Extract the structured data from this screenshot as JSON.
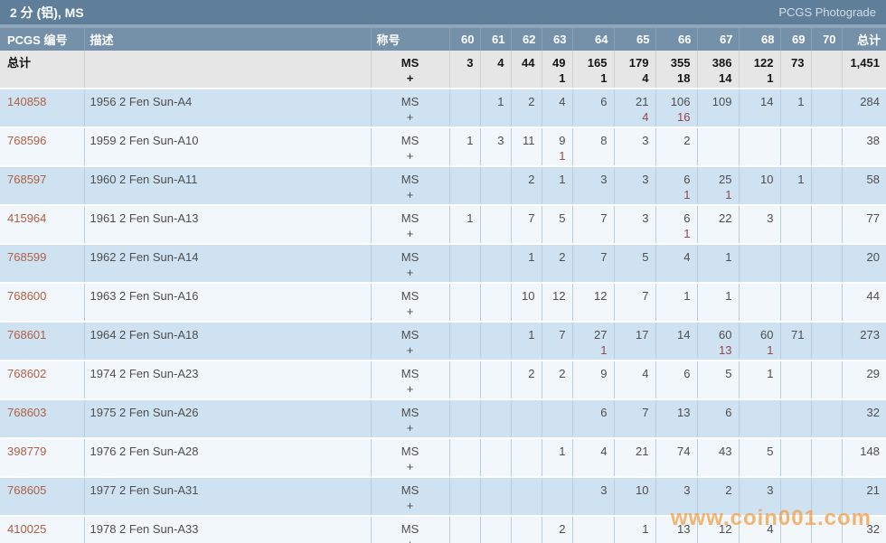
{
  "title": "2 分 (铝), MS",
  "brand": "PCGS Photograde",
  "columns": {
    "pcgs": "PCGS 编号",
    "desc": "描述",
    "designation": "称号",
    "grades": [
      "60",
      "61",
      "62",
      "63",
      "64",
      "65",
      "66",
      "67",
      "68",
      "69",
      "70"
    ],
    "total": "总计"
  },
  "designation_lines": [
    "MS",
    "+"
  ],
  "totals_row": {
    "label": "总计",
    "grades": [
      [
        "3",
        ""
      ],
      [
        "4",
        ""
      ],
      [
        "44",
        ""
      ],
      [
        "49",
        "1"
      ],
      [
        "165",
        "1"
      ],
      [
        "179",
        "4"
      ],
      [
        "355",
        "18"
      ],
      [
        "386",
        "14"
      ],
      [
        "122",
        "1"
      ],
      [
        "73",
        ""
      ],
      [
        "",
        ""
      ]
    ],
    "total": "1,451"
  },
  "rows": [
    {
      "pcgs": "140858",
      "desc": "1956 2 Fen Sun-A4",
      "grades": [
        [
          "",
          ""
        ],
        [
          "1",
          ""
        ],
        [
          "2",
          ""
        ],
        [
          "4",
          ""
        ],
        [
          "6",
          ""
        ],
        [
          "21",
          "4"
        ],
        [
          "106",
          "16"
        ],
        [
          "109",
          ""
        ],
        [
          "14",
          ""
        ],
        [
          "1",
          ""
        ],
        [
          "",
          ""
        ]
      ],
      "total": "284"
    },
    {
      "pcgs": "768596",
      "desc": "1959 2 Fen Sun-A10",
      "grades": [
        [
          "1",
          ""
        ],
        [
          "3",
          ""
        ],
        [
          "11",
          ""
        ],
        [
          "9",
          "1"
        ],
        [
          "8",
          ""
        ],
        [
          "3",
          ""
        ],
        [
          "2",
          ""
        ],
        [
          "",
          ""
        ],
        [
          "",
          ""
        ],
        [
          "",
          ""
        ],
        [
          "",
          ""
        ]
      ],
      "total": "38"
    },
    {
      "pcgs": "768597",
      "desc": "1960 2 Fen Sun-A11",
      "grades": [
        [
          "",
          ""
        ],
        [
          "",
          ""
        ],
        [
          "2",
          ""
        ],
        [
          "1",
          ""
        ],
        [
          "3",
          ""
        ],
        [
          "3",
          ""
        ],
        [
          "6",
          "1"
        ],
        [
          "25",
          "1"
        ],
        [
          "10",
          ""
        ],
        [
          "1",
          ""
        ],
        [
          "",
          ""
        ]
      ],
      "total": "58"
    },
    {
      "pcgs": "415964",
      "desc": "1961 2 Fen Sun-A13",
      "grades": [
        [
          "1",
          ""
        ],
        [
          "",
          ""
        ],
        [
          "7",
          ""
        ],
        [
          "5",
          ""
        ],
        [
          "7",
          ""
        ],
        [
          "3",
          ""
        ],
        [
          "6",
          "1"
        ],
        [
          "22",
          ""
        ],
        [
          "3",
          ""
        ],
        [
          "",
          ""
        ],
        [
          "",
          ""
        ]
      ],
      "total": "77"
    },
    {
      "pcgs": "768599",
      "desc": "1962 2 Fen Sun-A14",
      "grades": [
        [
          "",
          ""
        ],
        [
          "",
          ""
        ],
        [
          "1",
          ""
        ],
        [
          "2",
          ""
        ],
        [
          "7",
          ""
        ],
        [
          "5",
          ""
        ],
        [
          "4",
          ""
        ],
        [
          "1",
          ""
        ],
        [
          "",
          ""
        ],
        [
          "",
          ""
        ],
        [
          "",
          ""
        ]
      ],
      "total": "20"
    },
    {
      "pcgs": "768600",
      "desc": "1963 2 Fen Sun-A16",
      "grades": [
        [
          "",
          ""
        ],
        [
          "",
          ""
        ],
        [
          "10",
          ""
        ],
        [
          "12",
          ""
        ],
        [
          "12",
          ""
        ],
        [
          "7",
          ""
        ],
        [
          "1",
          ""
        ],
        [
          "1",
          ""
        ],
        [
          "",
          ""
        ],
        [
          "",
          ""
        ],
        [
          "",
          ""
        ]
      ],
      "total": "44"
    },
    {
      "pcgs": "768601",
      "desc": "1964 2 Fen Sun-A18",
      "grades": [
        [
          "",
          ""
        ],
        [
          "",
          ""
        ],
        [
          "1",
          ""
        ],
        [
          "7",
          ""
        ],
        [
          "27",
          "1"
        ],
        [
          "17",
          ""
        ],
        [
          "14",
          ""
        ],
        [
          "60",
          "13"
        ],
        [
          "60",
          "1"
        ],
        [
          "71",
          ""
        ],
        [
          "",
          ""
        ]
      ],
      "total": "273"
    },
    {
      "pcgs": "768602",
      "desc": "1974 2 Fen Sun-A23",
      "grades": [
        [
          "",
          ""
        ],
        [
          "",
          ""
        ],
        [
          "2",
          ""
        ],
        [
          "2",
          ""
        ],
        [
          "9",
          ""
        ],
        [
          "4",
          ""
        ],
        [
          "6",
          ""
        ],
        [
          "5",
          ""
        ],
        [
          "1",
          ""
        ],
        [
          "",
          ""
        ],
        [
          "",
          ""
        ]
      ],
      "total": "29"
    },
    {
      "pcgs": "768603",
      "desc": "1975 2 Fen Sun-A26",
      "grades": [
        [
          "",
          ""
        ],
        [
          "",
          ""
        ],
        [
          "",
          ""
        ],
        [
          "",
          ""
        ],
        [
          "6",
          ""
        ],
        [
          "7",
          ""
        ],
        [
          "13",
          ""
        ],
        [
          "6",
          ""
        ],
        [
          "",
          ""
        ],
        [
          "",
          ""
        ],
        [
          "",
          ""
        ]
      ],
      "total": "32"
    },
    {
      "pcgs": "398779",
      "desc": "1976 2 Fen Sun-A28",
      "grades": [
        [
          "",
          ""
        ],
        [
          "",
          ""
        ],
        [
          "",
          ""
        ],
        [
          "1",
          ""
        ],
        [
          "4",
          ""
        ],
        [
          "21",
          ""
        ],
        [
          "74",
          ""
        ],
        [
          "43",
          ""
        ],
        [
          "5",
          ""
        ],
        [
          "",
          ""
        ],
        [
          "",
          ""
        ]
      ],
      "total": "148"
    },
    {
      "pcgs": "768605",
      "desc": "1977 2 Fen Sun-A31",
      "grades": [
        [
          "",
          ""
        ],
        [
          "",
          ""
        ],
        [
          "",
          ""
        ],
        [
          "",
          ""
        ],
        [
          "3",
          ""
        ],
        [
          "10",
          ""
        ],
        [
          "3",
          ""
        ],
        [
          "2",
          ""
        ],
        [
          "3",
          ""
        ],
        [
          "",
          ""
        ],
        [
          "",
          ""
        ]
      ],
      "total": "21"
    },
    {
      "pcgs": "410025",
      "desc": "1978 2 Fen Sun-A33",
      "grades": [
        [
          "",
          ""
        ],
        [
          "",
          ""
        ],
        [
          "",
          ""
        ],
        [
          "2",
          ""
        ],
        [
          "",
          ""
        ],
        [
          "1",
          ""
        ],
        [
          "13",
          ""
        ],
        [
          "12",
          ""
        ],
        [
          "4",
          ""
        ],
        [
          "",
          ""
        ],
        [
          "",
          ""
        ]
      ],
      "total": "32"
    }
  ],
  "watermark": "www.coin001.com",
  "colors": {
    "titlebar_bg": "#5e7e99",
    "header_bg": "#7591aa",
    "totals_row_bg": "#e6e6e6",
    "row_odd_bg": "#cfe2f1",
    "row_even_bg": "#f2f7fb",
    "link": "#b06045",
    "plus_count": "#94454e",
    "watermark": "#f39b3f"
  }
}
